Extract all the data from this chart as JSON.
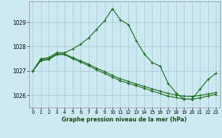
{
  "title": "Graphe pression niveau de la mer (hPa)",
  "background_color": "#cce8f0",
  "grid_color": "#aaccd8",
  "line_color": "#1a6b1a",
  "xlim": [
    -0.5,
    23.5
  ],
  "ylim": [
    1025.5,
    1029.85
  ],
  "yticks": [
    1026,
    1027,
    1028,
    1029
  ],
  "xticks": [
    0,
    1,
    2,
    3,
    4,
    5,
    6,
    7,
    8,
    9,
    10,
    11,
    12,
    13,
    14,
    15,
    16,
    17,
    18,
    19,
    20,
    21,
    22,
    23
  ],
  "series1_x": [
    0,
    1,
    2,
    3,
    4,
    5,
    6,
    7,
    8,
    9,
    10,
    11,
    12,
    13,
    14,
    15,
    16,
    17,
    18,
    19,
    20,
    21,
    22,
    23
  ],
  "series1_y": [
    1027.0,
    1027.5,
    1027.55,
    1027.75,
    1027.75,
    1027.9,
    1028.1,
    1028.35,
    1028.7,
    1029.05,
    1029.55,
    1029.1,
    1028.9,
    1028.25,
    1027.7,
    1027.35,
    1027.2,
    1026.5,
    1026.1,
    1025.85,
    1025.85,
    1026.25,
    1026.65,
    1026.9
  ],
  "series2_x": [
    0,
    1,
    2,
    3,
    4,
    5,
    6,
    7,
    8,
    9,
    10,
    11,
    12,
    13,
    14,
    15,
    16,
    17,
    18,
    19,
    20,
    21,
    22,
    23
  ],
  "series2_y": [
    1027.0,
    1027.45,
    1027.5,
    1027.7,
    1027.7,
    1027.55,
    1027.42,
    1027.28,
    1027.12,
    1026.98,
    1026.82,
    1026.68,
    1026.58,
    1026.47,
    1026.37,
    1026.27,
    1026.18,
    1026.08,
    1026.02,
    1025.97,
    1025.96,
    1026.0,
    1026.06,
    1026.12
  ],
  "series3_x": [
    0,
    1,
    2,
    3,
    4,
    5,
    6,
    7,
    8,
    9,
    10,
    11,
    12,
    13,
    14,
    15,
    16,
    17,
    18,
    19,
    20,
    21,
    22,
    23
  ],
  "series3_y": [
    1027.0,
    1027.42,
    1027.47,
    1027.67,
    1027.67,
    1027.5,
    1027.37,
    1027.22,
    1027.05,
    1026.9,
    1026.75,
    1026.6,
    1026.5,
    1026.4,
    1026.3,
    1026.18,
    1026.08,
    1025.97,
    1025.91,
    1025.86,
    1025.85,
    1025.9,
    1025.97,
    1026.05
  ]
}
